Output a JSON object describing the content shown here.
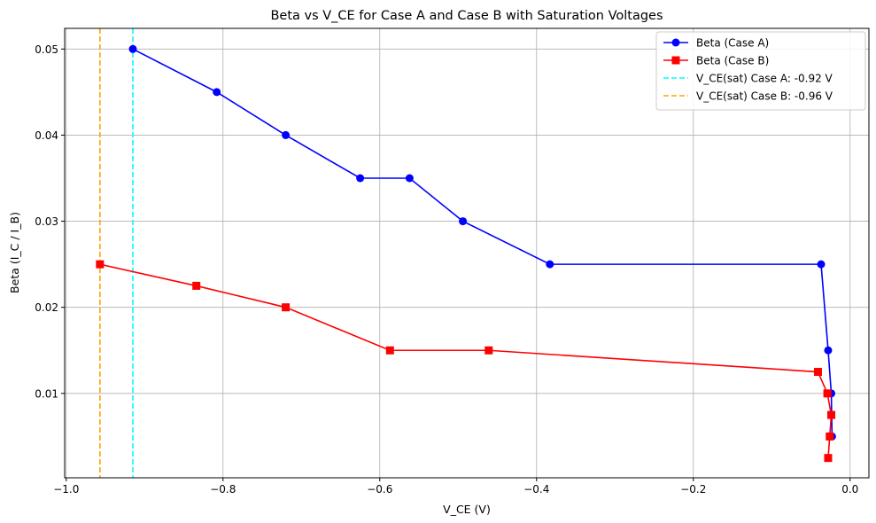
{
  "chart_data": {
    "type": "line",
    "title": "Beta vs V_CE for Case A and Case B with Saturation Voltages",
    "xlabel": "V_CE (V)",
    "ylabel": "Beta (I_C / I_B)",
    "xlim": [
      -1.002,
      0.024
    ],
    "ylim": [
      0.0002,
      0.0524
    ],
    "xticks": [
      -1.0,
      -0.8,
      -0.6,
      -0.4,
      -0.2,
      0.0
    ],
    "xtick_labels": [
      "−1.0",
      "−0.8",
      "−0.6",
      "−0.4",
      "−0.2",
      "0.0"
    ],
    "yticks": [
      0.01,
      0.02,
      0.03,
      0.04,
      0.05
    ],
    "ytick_labels": [
      "0.01",
      "0.02",
      "0.03",
      "0.04",
      "0.05"
    ],
    "grid": true,
    "legend_position": "top-right",
    "series": [
      {
        "name": "Beta (Case A)",
        "color": "#0000ff",
        "marker": "circle",
        "x": [
          -0.915,
          -0.808,
          -0.72,
          -0.625,
          -0.562,
          -0.494,
          -0.383,
          -0.037,
          -0.028,
          -0.024,
          -0.023
        ],
        "y": [
          0.05,
          0.045,
          0.04,
          0.035,
          0.035,
          0.03,
          0.025,
          0.025,
          0.015,
          0.01,
          0.005
        ]
      },
      {
        "name": "Beta (Case B)",
        "color": "#ff0000",
        "marker": "square",
        "x": [
          -0.957,
          -0.834,
          -0.72,
          -0.587,
          -0.461,
          -0.041,
          -0.029,
          -0.024,
          -0.026,
          -0.028
        ],
        "y": [
          0.025,
          0.0225,
          0.02,
          0.015,
          0.015,
          0.0125,
          0.01,
          0.0075,
          0.005,
          0.0025
        ]
      }
    ],
    "vlines": [
      {
        "name": "V_CE(sat) Case A: -0.92 V",
        "x": -0.915,
        "color": "#00ffff",
        "style": "dashed"
      },
      {
        "name": "V_CE(sat) Case B: -0.96 V",
        "x": -0.957,
        "color": "#ffa500",
        "style": "dashed"
      }
    ]
  }
}
